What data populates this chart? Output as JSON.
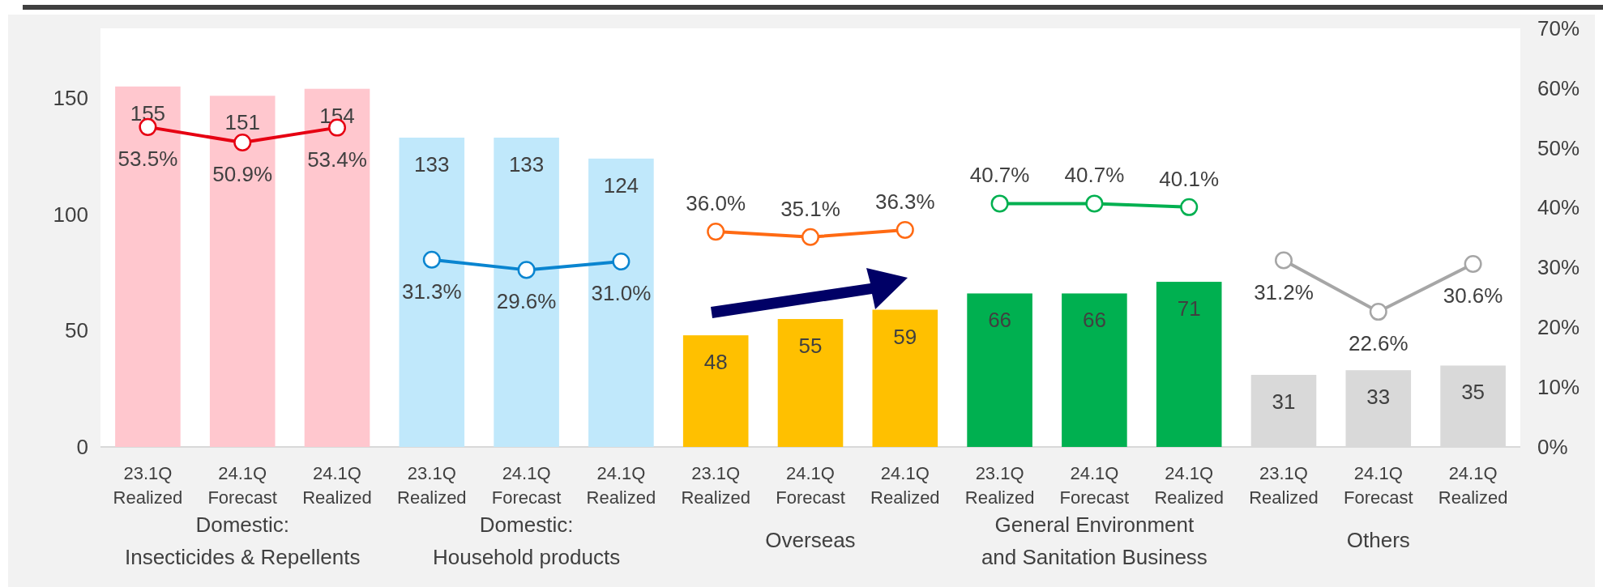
{
  "chart_data": {
    "type": "bar",
    "categories": [
      "23.1Q\nRealized",
      "24.1Q\nForecast",
      "24.1Q\nRealized",
      "23.1Q\nRealized",
      "24.1Q\nForecast",
      "24.1Q\nRealized",
      "23.1Q\nRealized",
      "24.1Q\nForecast",
      "24.1Q\nRealized",
      "23.1Q\nRealized",
      "24.1Q\nForecast",
      "24.1Q\nRealized",
      "23.1Q\nRealized",
      "24.1Q\nForecast",
      "24.1Q\nRealized"
    ],
    "values": [
      155,
      151,
      154,
      133,
      133,
      124,
      48,
      55,
      59,
      66,
      66,
      71,
      31,
      33,
      35
    ],
    "colors": [
      "#ffc7ce",
      "#ffc7ce",
      "#ffc7ce",
      "#c0e8fb",
      "#c0e8fb",
      "#c0e8fb",
      "#ffc000",
      "#ffc000",
      "#ffc000",
      "#00b050",
      "#00b050",
      "#00b050",
      "#d9d9d9",
      "#d9d9d9",
      "#d9d9d9"
    ],
    "data_labels": true,
    "series": [
      {
        "type": "line",
        "axis": "y2",
        "color": "#e60012",
        "values": [
          53.5,
          50.9,
          53.4,
          null,
          null,
          null,
          null,
          null,
          null,
          null,
          null,
          null,
          null,
          null,
          null
        ],
        "value_labels": [
          "53.5%",
          "50.9%",
          "53.4%",
          null,
          null,
          null,
          null,
          null,
          null,
          null,
          null,
          null,
          null,
          null,
          null
        ]
      },
      {
        "type": "line",
        "axis": "y2",
        "color": "#0a85d0",
        "values": [
          null,
          null,
          null,
          31.3,
          29.6,
          31.0,
          null,
          null,
          null,
          null,
          null,
          null,
          null,
          null,
          null
        ],
        "value_labels": [
          null,
          null,
          null,
          "31.3%",
          "29.6%",
          "31.0%",
          null,
          null,
          null,
          null,
          null,
          null,
          null,
          null,
          null
        ]
      },
      {
        "type": "line",
        "axis": "y2",
        "color": "#ff6a13",
        "values": [
          null,
          null,
          null,
          null,
          null,
          null,
          36.0,
          35.1,
          36.3,
          null,
          null,
          null,
          null,
          null,
          null
        ],
        "value_labels": [
          null,
          null,
          null,
          null,
          null,
          null,
          "36.0%",
          "35.1%",
          "36.3%",
          null,
          null,
          null,
          null,
          null,
          null
        ]
      },
      {
        "type": "line",
        "axis": "y2",
        "color": "#00b050",
        "values": [
          null,
          null,
          null,
          null,
          null,
          null,
          null,
          null,
          null,
          40.7,
          40.7,
          40.1,
          null,
          null,
          null
        ],
        "value_labels": [
          null,
          null,
          null,
          null,
          null,
          null,
          null,
          null,
          null,
          "40.7%",
          "40.7%",
          "40.1%",
          null,
          null,
          null
        ]
      },
      {
        "type": "line",
        "axis": "y2",
        "color": "#a6a6a6",
        "values": [
          null,
          null,
          null,
          null,
          null,
          null,
          null,
          null,
          null,
          null,
          null,
          null,
          31.2,
          22.6,
          30.6
        ],
        "value_labels": [
          null,
          null,
          null,
          null,
          null,
          null,
          null,
          null,
          null,
          null,
          null,
          null,
          "31.2%",
          "22.6%",
          "30.6%"
        ]
      }
    ],
    "marker": "circle",
    "ylim": [
      0,
      180
    ],
    "yticks": [
      0,
      50,
      100,
      150
    ],
    "y2lim": [
      0,
      70
    ],
    "y2ticks": [
      {
        "value": 0,
        "label": "0%"
      },
      {
        "value": 10,
        "label": "10%"
      },
      {
        "value": 20,
        "label": "20%"
      },
      {
        "value": 30,
        "label": "30%"
      },
      {
        "value": 40,
        "label": "40%"
      },
      {
        "value": 50,
        "label": "50%"
      },
      {
        "value": 60,
        "label": "60%"
      },
      {
        "value": 70,
        "label": "70%"
      }
    ],
    "grid": false,
    "annotations": [
      "Domestic:\nInsecticides & Repellents",
      "Domestic:\nHousehold products",
      "Overseas",
      "General Environment\nand Sanitation Business",
      "Others"
    ]
  }
}
